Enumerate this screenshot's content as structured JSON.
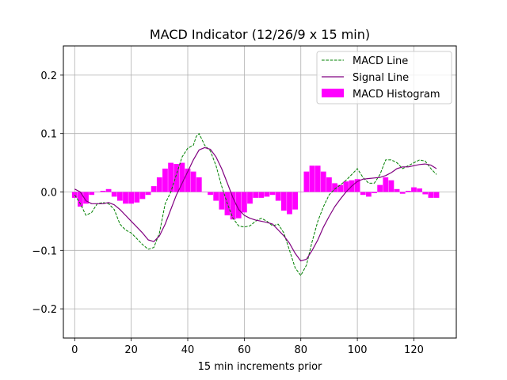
{
  "chart_data": {
    "type": "line",
    "title": "MACD Indicator (12/26/9 x 15 min)",
    "xlabel": "15 min increments prior",
    "ylabel": "",
    "xlim": [
      -4,
      135
    ],
    "ylim": [
      -0.25,
      0.25
    ],
    "xticks": [
      0,
      20,
      40,
      60,
      80,
      100,
      120
    ],
    "yticks": [
      -0.2,
      -0.1,
      0.0,
      0.1,
      0.2
    ],
    "xtick_labels": [
      "0",
      "20",
      "40",
      "60",
      "80",
      "100",
      "120"
    ],
    "ytick_labels": [
      "−0.2",
      "−0.1",
      "0.0",
      "0.1",
      "0.2"
    ],
    "grid": true,
    "legend_position": "top-right",
    "colors": {
      "macd": "#008000",
      "signal": "#800080",
      "histogram": "#ff00ff"
    },
    "series": [
      {
        "name": "MACD Line",
        "style": "dashed",
        "x": [
          0,
          2,
          4,
          6,
          8,
          10,
          12,
          14,
          16,
          18,
          20,
          22,
          24,
          26,
          28,
          30,
          32,
          34,
          36,
          38,
          40,
          42,
          43,
          44,
          46,
          48,
          50,
          52,
          54,
          56,
          58,
          60,
          62,
          64,
          66,
          68,
          70,
          72,
          74,
          76,
          78,
          80,
          82,
          84,
          86,
          88,
          90,
          92,
          94,
          96,
          98,
          100,
          102,
          104,
          106,
          108,
          110,
          112,
          114,
          116,
          118,
          120,
          122,
          124,
          126,
          128
        ],
        "values": [
          -0.005,
          -0.02,
          -0.04,
          -0.035,
          -0.02,
          -0.018,
          -0.02,
          -0.03,
          -0.055,
          -0.065,
          -0.07,
          -0.08,
          -0.09,
          -0.098,
          -0.095,
          -0.07,
          -0.02,
          0.0,
          0.03,
          0.06,
          0.075,
          0.08,
          0.095,
          0.1,
          0.08,
          0.07,
          0.045,
          0.01,
          -0.02,
          -0.045,
          -0.058,
          -0.06,
          -0.058,
          -0.05,
          -0.045,
          -0.05,
          -0.058,
          -0.055,
          -0.07,
          -0.1,
          -0.13,
          -0.143,
          -0.125,
          -0.085,
          -0.05,
          -0.025,
          -0.005,
          0.005,
          0.012,
          0.02,
          0.03,
          0.04,
          0.025,
          0.015,
          0.015,
          0.03,
          0.055,
          0.055,
          0.05,
          0.04,
          0.045,
          0.05,
          0.055,
          0.053,
          0.04,
          0.03
        ]
      },
      {
        "name": "Signal Line",
        "style": "solid",
        "x": [
          0,
          2,
          4,
          6,
          8,
          10,
          12,
          14,
          16,
          18,
          20,
          22,
          24,
          26,
          28,
          30,
          32,
          34,
          36,
          38,
          40,
          42,
          44,
          46,
          48,
          50,
          52,
          54,
          56,
          58,
          60,
          62,
          64,
          66,
          68,
          70,
          72,
          74,
          76,
          78,
          80,
          82,
          84,
          86,
          88,
          90,
          92,
          94,
          96,
          98,
          100,
          102,
          104,
          106,
          108,
          110,
          112,
          114,
          116,
          118,
          120,
          122,
          124,
          126,
          128
        ],
        "values": [
          0.005,
          0.0,
          -0.015,
          -0.02,
          -0.02,
          -0.02,
          -0.018,
          -0.022,
          -0.03,
          -0.04,
          -0.05,
          -0.06,
          -0.07,
          -0.082,
          -0.085,
          -0.075,
          -0.055,
          -0.03,
          -0.005,
          0.015,
          0.035,
          0.055,
          0.072,
          0.076,
          0.073,
          0.06,
          0.04,
          0.015,
          -0.01,
          -0.03,
          -0.04,
          -0.045,
          -0.048,
          -0.05,
          -0.052,
          -0.055,
          -0.065,
          -0.075,
          -0.088,
          -0.105,
          -0.118,
          -0.115,
          -0.1,
          -0.082,
          -0.06,
          -0.042,
          -0.025,
          -0.012,
          0.0,
          0.01,
          0.018,
          0.022,
          0.023,
          0.024,
          0.025,
          0.028,
          0.033,
          0.04,
          0.043,
          0.043,
          0.045,
          0.047,
          0.048,
          0.046,
          0.04
        ]
      },
      {
        "name": "MACD Histogram",
        "style": "bar",
        "x": [
          0,
          2,
          4,
          6,
          8,
          10,
          12,
          14,
          16,
          18,
          20,
          22,
          24,
          26,
          28,
          30,
          32,
          34,
          36,
          38,
          40,
          42,
          44,
          46,
          48,
          50,
          52,
          54,
          56,
          58,
          60,
          62,
          64,
          66,
          68,
          70,
          72,
          74,
          76,
          78,
          80,
          82,
          84,
          86,
          88,
          90,
          92,
          94,
          96,
          98,
          100,
          102,
          104,
          106,
          108,
          110,
          112,
          114,
          116,
          118,
          120,
          122,
          124,
          126,
          128
        ],
        "values": [
          -0.01,
          -0.025,
          -0.02,
          -0.005,
          0.0,
          0.002,
          0.005,
          -0.008,
          -0.015,
          -0.02,
          -0.02,
          -0.018,
          -0.012,
          -0.005,
          0.01,
          0.025,
          0.04,
          0.05,
          0.048,
          0.05,
          0.04,
          0.035,
          0.025,
          0.0,
          -0.005,
          -0.015,
          -0.03,
          -0.04,
          -0.047,
          -0.045,
          -0.035,
          -0.02,
          -0.01,
          -0.01,
          -0.008,
          -0.005,
          -0.015,
          -0.032,
          -0.038,
          -0.03,
          0.0,
          0.035,
          0.045,
          0.045,
          0.035,
          0.025,
          0.015,
          0.012,
          0.018,
          0.02,
          0.022,
          -0.005,
          -0.008,
          -0.002,
          0.012,
          0.025,
          0.02,
          0.005,
          -0.003,
          0.002,
          0.008,
          0.006,
          -0.004,
          -0.01,
          -0.01
        ]
      }
    ]
  }
}
